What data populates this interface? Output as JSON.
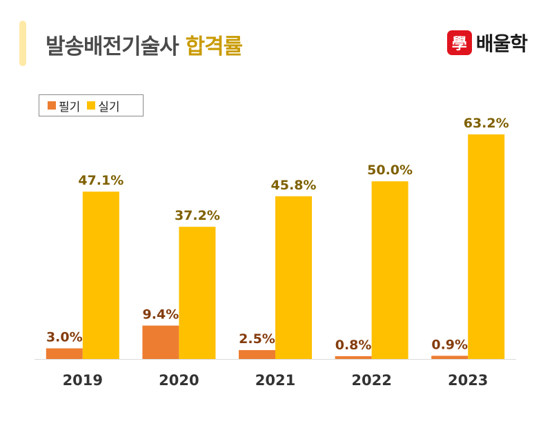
{
  "header": {
    "title_main": "발송배전기술사",
    "title_highlight": "합격률",
    "logo_seal": "學",
    "logo_text": "배울학"
  },
  "colors": {
    "written": "#ED7D31",
    "practical": "#FFC000",
    "written_label": "#843C0C",
    "practical_label": "#7F6000",
    "accent_bar": "#FFE9A6",
    "title_highlight": "#C99A00",
    "logo_red": "#E0141E"
  },
  "chart_data": {
    "type": "bar",
    "title": "발송배전기술사 합격률",
    "categories": [
      "2019",
      "2020",
      "2021",
      "2022",
      "2023"
    ],
    "series": [
      {
        "name": "필기",
        "values": [
          3.0,
          9.4,
          2.5,
          0.8,
          0.9
        ],
        "labels": [
          "3.0%",
          "9.4%",
          "2.5%",
          "0.8%",
          "0.9%"
        ]
      },
      {
        "name": "실기",
        "values": [
          47.1,
          37.2,
          45.8,
          50.0,
          63.2
        ],
        "labels": [
          "47.1%",
          "37.2%",
          "45.8%",
          "50.0%",
          "63.2%"
        ]
      }
    ],
    "ylim": [
      0,
      70
    ],
    "legend": "top-left",
    "grid": false
  }
}
